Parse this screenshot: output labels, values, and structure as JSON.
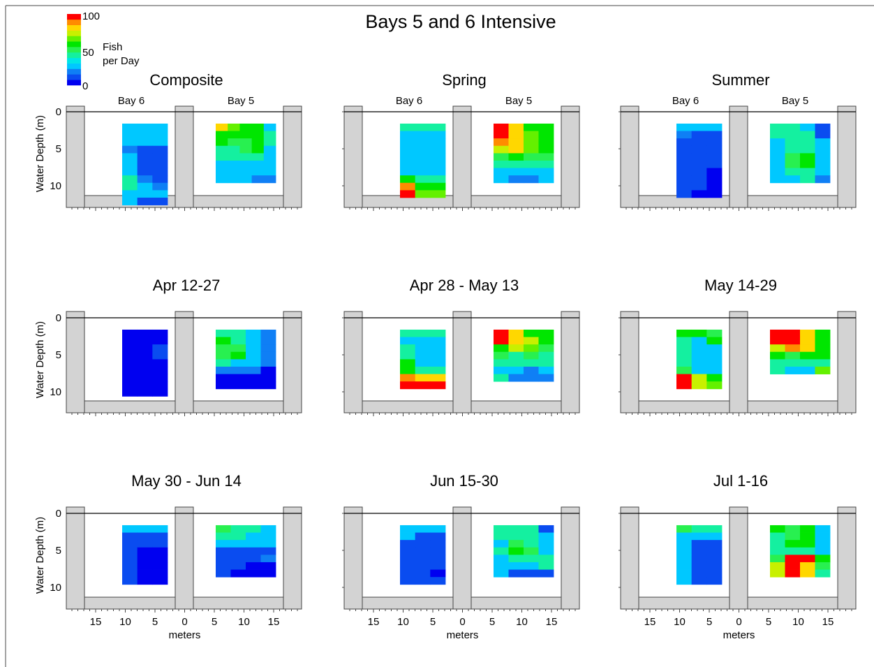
{
  "title": "Bays 5 and 6 Intensive",
  "colorbar": {
    "label_line1": "Fish",
    "label_line2": "per Day",
    "ticks": [
      "100",
      "50",
      "0"
    ],
    "min": 0,
    "max": 100,
    "colors": [
      "#0000f0",
      "#0a4cf0",
      "#0f7ff5",
      "#00c8ff",
      "#00e6e6",
      "#14f0a0",
      "#28f050",
      "#00e600",
      "#64f000",
      "#c8f000",
      "#ffd700",
      "#ff8c00",
      "#ff0000"
    ]
  },
  "axis": {
    "ylabel": "Water Depth (m)",
    "xlabel": "meters",
    "yticks": [
      0,
      5,
      10
    ],
    "xticks": [
      "15",
      "10",
      "5",
      "0",
      "5",
      "10",
      "15"
    ],
    "bay_labels": [
      "Bay 6",
      "Bay 5"
    ]
  },
  "chart_data": [
    {
      "type": "heatmap",
      "title": "Composite",
      "bay6": [
        [
          26,
          26,
          26
        ],
        [
          26,
          26,
          26
        ],
        [
          26,
          26,
          26
        ],
        [
          19,
          11,
          11
        ],
        [
          26,
          11,
          11
        ],
        [
          26,
          11,
          11
        ],
        [
          26,
          11,
          11
        ],
        [
          40,
          19,
          11
        ],
        [
          40,
          26,
          19
        ],
        [
          26,
          26,
          26
        ],
        [
          26,
          11,
          11
        ]
      ],
      "bay5": [
        [
          82,
          66,
          58,
          58,
          26
        ],
        [
          58,
          58,
          58,
          58,
          40
        ],
        [
          58,
          50,
          50,
          58,
          40
        ],
        [
          40,
          40,
          50,
          58,
          26
        ],
        [
          40,
          40,
          40,
          40,
          26
        ],
        [
          26,
          26,
          26,
          26,
          26
        ],
        [
          26,
          26,
          26,
          26,
          26
        ],
        [
          26,
          26,
          26,
          19,
          19
        ]
      ]
    },
    {
      "type": "heatmap",
      "title": "Spring",
      "bay6": [
        [
          40,
          40,
          40
        ],
        [
          26,
          26,
          26
        ],
        [
          26,
          26,
          26
        ],
        [
          26,
          26,
          26
        ],
        [
          26,
          26,
          26
        ],
        [
          26,
          26,
          26
        ],
        [
          26,
          26,
          26
        ],
        [
          58,
          40,
          40
        ],
        [
          90,
          58,
          58
        ],
        [
          98,
          66,
          66
        ]
      ],
      "bay5": [
        [
          98,
          82,
          58,
          58
        ],
        [
          98,
          82,
          66,
          58
        ],
        [
          90,
          82,
          66,
          58
        ],
        [
          74,
          82,
          66,
          58
        ],
        [
          50,
          58,
          50,
          50
        ],
        [
          40,
          40,
          40,
          40
        ],
        [
          26,
          26,
          26,
          26
        ],
        [
          26,
          19,
          19,
          26
        ]
      ]
    },
    {
      "type": "heatmap",
      "title": "Summer",
      "bay6": [
        [
          26,
          26,
          26
        ],
        [
          19,
          11,
          11
        ],
        [
          11,
          11,
          11
        ],
        [
          11,
          11,
          11
        ],
        [
          11,
          11,
          11
        ],
        [
          11,
          11,
          11
        ],
        [
          11,
          11,
          0
        ],
        [
          11,
          11,
          0
        ],
        [
          11,
          11,
          0
        ],
        [
          11,
          0,
          0
        ]
      ],
      "bay5": [
        [
          40,
          40,
          26,
          11
        ],
        [
          40,
          40,
          40,
          11
        ],
        [
          26,
          40,
          40,
          26
        ],
        [
          26,
          40,
          40,
          26
        ],
        [
          26,
          50,
          58,
          26
        ],
        [
          26,
          50,
          58,
          26
        ],
        [
          26,
          40,
          40,
          26
        ],
        [
          26,
          26,
          40,
          19
        ]
      ]
    },
    {
      "type": "heatmap",
      "title": "Apr 12-27",
      "bay6": [
        [
          0,
          0,
          0
        ],
        [
          0,
          0,
          0
        ],
        [
          0,
          0,
          11
        ],
        [
          0,
          0,
          11
        ],
        [
          0,
          0,
          0
        ],
        [
          0,
          0,
          0
        ],
        [
          0,
          0,
          0
        ],
        [
          0,
          0,
          0
        ],
        [
          0,
          0,
          0
        ]
      ],
      "bay5": [
        [
          40,
          40,
          26,
          19
        ],
        [
          58,
          40,
          26,
          19
        ],
        [
          50,
          50,
          26,
          19
        ],
        [
          50,
          58,
          26,
          19
        ],
        [
          40,
          26,
          26,
          19
        ],
        [
          19,
          19,
          19,
          0
        ],
        [
          0,
          0,
          0,
          0
        ],
        [
          0,
          0,
          0,
          0
        ]
      ]
    },
    {
      "type": "heatmap",
      "title": "Apr 28 - May 13",
      "bay6": [
        [
          40,
          40,
          40
        ],
        [
          26,
          26,
          26
        ],
        [
          40,
          26,
          26
        ],
        [
          40,
          26,
          26
        ],
        [
          58,
          26,
          26
        ],
        [
          58,
          40,
          40
        ],
        [
          90,
          82,
          82
        ],
        [
          98,
          98,
          98
        ]
      ],
      "bay5": [
        [
          98,
          82,
          58,
          58
        ],
        [
          98,
          82,
          74,
          58
        ],
        [
          58,
          74,
          66,
          50
        ],
        [
          50,
          40,
          50,
          40
        ],
        [
          40,
          40,
          40,
          40
        ],
        [
          26,
          26,
          19,
          26
        ],
        [
          40,
          19,
          19,
          19
        ]
      ]
    },
    {
      "type": "heatmap",
      "title": "May 14-29",
      "bay6": [
        [
          58,
          58,
          50
        ],
        [
          40,
          26,
          58
        ],
        [
          40,
          26,
          26
        ],
        [
          40,
          26,
          26
        ],
        [
          40,
          26,
          26
        ],
        [
          50,
          26,
          26
        ],
        [
          98,
          74,
          58
        ],
        [
          98,
          74,
          66
        ]
      ],
      "bay5": [
        [
          98,
          98,
          82,
          58
        ],
        [
          98,
          98,
          82,
          58
        ],
        [
          74,
          90,
          82,
          58
        ],
        [
          58,
          50,
          58,
          58
        ],
        [
          40,
          40,
          40,
          40
        ],
        [
          40,
          26,
          26,
          66
        ]
      ]
    },
    {
      "type": "heatmap",
      "title": "May 30 - Jun 14",
      "bay6": [
        [
          26,
          26,
          26
        ],
        [
          11,
          11,
          11
        ],
        [
          11,
          11,
          11
        ],
        [
          11,
          0,
          0
        ],
        [
          11,
          0,
          0
        ],
        [
          11,
          0,
          0
        ],
        [
          11,
          0,
          0
        ],
        [
          11,
          0,
          0
        ]
      ],
      "bay5": [
        [
          50,
          40,
          40,
          26
        ],
        [
          40,
          40,
          26,
          26
        ],
        [
          26,
          26,
          26,
          26
        ],
        [
          11,
          11,
          11,
          11
        ],
        [
          11,
          11,
          11,
          19
        ],
        [
          11,
          11,
          0,
          0
        ],
        [
          11,
          0,
          0,
          0
        ]
      ]
    },
    {
      "type": "heatmap",
      "title": "Jun 15-30",
      "bay6": [
        [
          26,
          26,
          26
        ],
        [
          26,
          11,
          11
        ],
        [
          11,
          11,
          11
        ],
        [
          11,
          11,
          11
        ],
        [
          11,
          11,
          11
        ],
        [
          11,
          11,
          11
        ],
        [
          11,
          11,
          0
        ],
        [
          11,
          11,
          11
        ]
      ],
      "bay5": [
        [
          40,
          40,
          40,
          11
        ],
        [
          40,
          40,
          40,
          26
        ],
        [
          26,
          50,
          40,
          26
        ],
        [
          40,
          58,
          50,
          26
        ],
        [
          26,
          40,
          40,
          40
        ],
        [
          26,
          26,
          26,
          40
        ],
        [
          26,
          11,
          11,
          11
        ]
      ]
    },
    {
      "type": "heatmap",
      "title": "Jul 1-16",
      "bay6": [
        [
          50,
          40,
          40
        ],
        [
          26,
          26,
          26
        ],
        [
          26,
          11,
          11
        ],
        [
          26,
          11,
          11
        ],
        [
          26,
          11,
          11
        ],
        [
          26,
          11,
          11
        ],
        [
          26,
          11,
          11
        ],
        [
          26,
          11,
          11
        ]
      ],
      "bay5": [
        [
          58,
          50,
          58,
          26
        ],
        [
          40,
          50,
          58,
          26
        ],
        [
          40,
          58,
          58,
          26
        ],
        [
          40,
          40,
          40,
          26
        ],
        [
          50,
          98,
          98,
          58
        ],
        [
          74,
          98,
          82,
          50
        ],
        [
          74,
          98,
          82,
          40
        ]
      ]
    }
  ]
}
